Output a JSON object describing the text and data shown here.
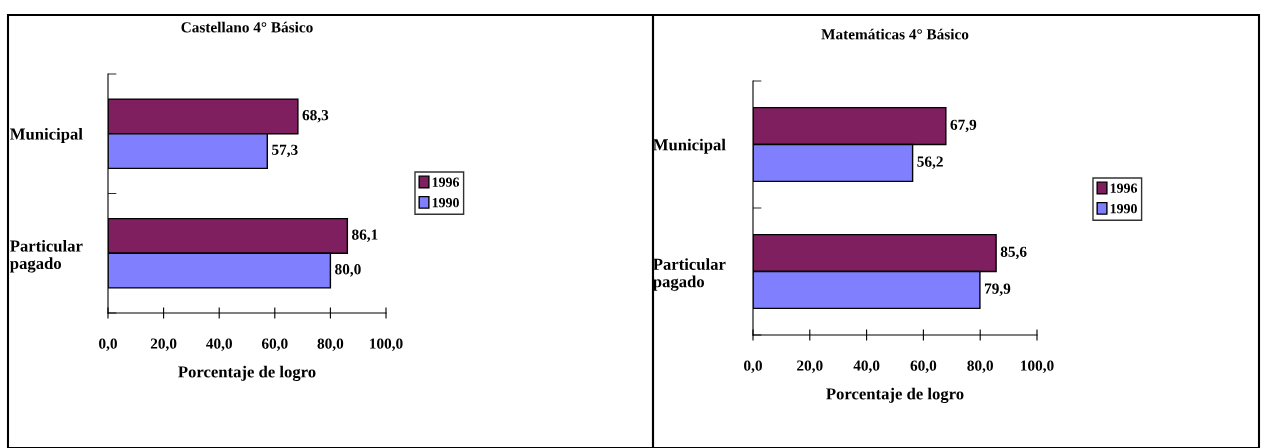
{
  "chart_data": [
    {
      "type": "bar",
      "orientation": "horizontal",
      "title": "Castellano 4° Básico",
      "xlabel": "Porcentaje de logro",
      "categories": [
        "Municipal",
        "Particular\npagado"
      ],
      "series": [
        {
          "name": "1996",
          "color": "#7f1f5f",
          "values": [
            68.3,
            86.1
          ],
          "value_labels": [
            "68,3",
            "86,1"
          ]
        },
        {
          "name": "1990",
          "color": "#8080ff",
          "values": [
            57.3,
            80.0
          ],
          "value_labels": [
            "57,3",
            "80,0"
          ]
        }
      ],
      "xlim": [
        0,
        100
      ],
      "xticks": [
        {
          "value": 0,
          "label": "0,0"
        },
        {
          "value": 20,
          "label": "20,0"
        },
        {
          "value": 40,
          "label": "40,0"
        },
        {
          "value": 60,
          "label": "60,0"
        },
        {
          "value": 80,
          "label": "80,0"
        },
        {
          "value": 100,
          "label": "100,0"
        }
      ],
      "legend": "right",
      "grid": false
    },
    {
      "type": "bar",
      "orientation": "horizontal",
      "title": "Matemáticas 4° Básico",
      "xlabel": "Porcentaje de logro",
      "categories": [
        "Municipal",
        "Particular\npagado"
      ],
      "series": [
        {
          "name": "1996",
          "color": "#7f1f5f",
          "values": [
            67.9,
            85.6
          ],
          "value_labels": [
            "67,9",
            "85,6"
          ]
        },
        {
          "name": "1990",
          "color": "#8080ff",
          "values": [
            56.2,
            79.9
          ],
          "value_labels": [
            "56,2",
            "79,9"
          ]
        }
      ],
      "xlim": [
        0,
        100
      ],
      "xticks": [
        {
          "value": 0,
          "label": "0,0"
        },
        {
          "value": 20,
          "label": "20,0"
        },
        {
          "value": 40,
          "label": "40,0"
        },
        {
          "value": 60,
          "label": "60,0"
        },
        {
          "value": 80,
          "label": "80,0"
        },
        {
          "value": 100,
          "label": "100,0"
        }
      ],
      "legend": "right",
      "grid": false
    }
  ]
}
